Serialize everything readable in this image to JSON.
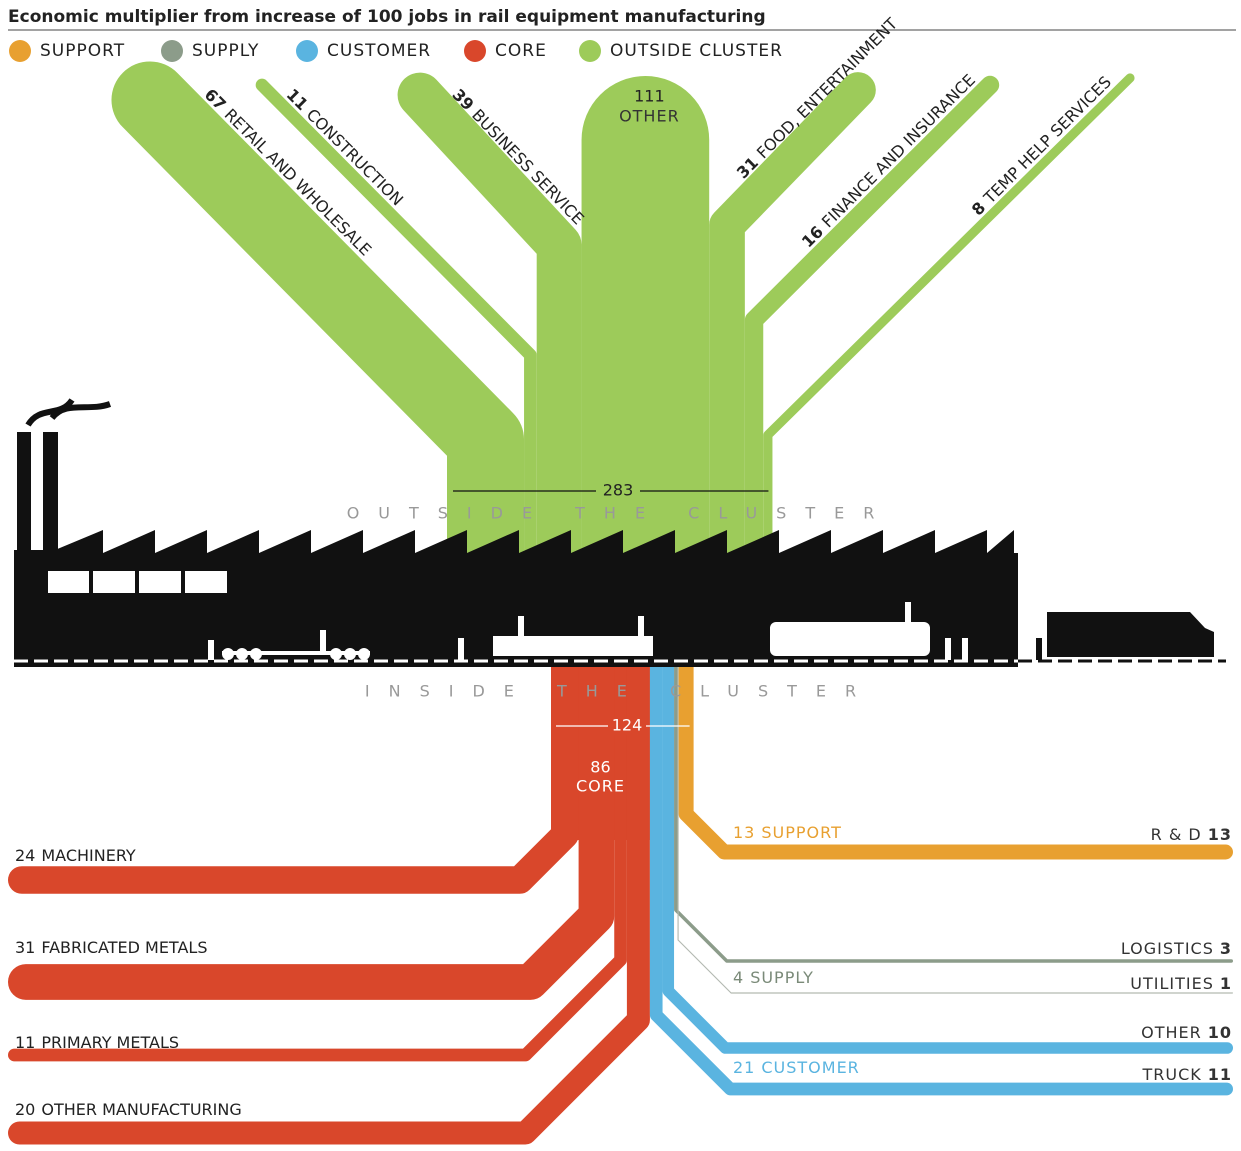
{
  "title": "Economic multiplier from increase of 100 jobs in rail equipment manufacturing",
  "legend": [
    {
      "label": "SUPPORT",
      "color": "#e8a030"
    },
    {
      "label": "SUPPLY",
      "color": "#8c9c8a"
    },
    {
      "label": "CUSTOMER",
      "color": "#5ab4e0"
    },
    {
      "label": "CORE",
      "color": "#d9472b"
    },
    {
      "label": "OUTSIDE CLUSTER",
      "color": "#9dcb5a"
    }
  ],
  "outside": {
    "label": "OUTSIDE THE CLUSTER",
    "total": 283,
    "branches": [
      {
        "value": 67,
        "label": "RETAIL AND WHOLESALE"
      },
      {
        "value": 11,
        "label": "CONSTRUCTION"
      },
      {
        "value": 39,
        "label": "BUSINESS SERVICE"
      },
      {
        "value": 111,
        "label": "OTHER"
      },
      {
        "value": 31,
        "label": "FOOD, ENTERTAINMENT"
      },
      {
        "value": 16,
        "label": "FINANCE AND INSURANCE"
      },
      {
        "value": 8,
        "label": "TEMP HELP SERVICES"
      }
    ]
  },
  "inside": {
    "label": "INSIDE THE CLUSTER",
    "total": 124,
    "core": {
      "value": 86,
      "label": "CORE",
      "branches": [
        {
          "value": 24,
          "label": "MACHINERY"
        },
        {
          "value": 31,
          "label": "FABRICATED METALS"
        },
        {
          "value": 11,
          "label": "PRIMARY METALS"
        },
        {
          "value": 20,
          "label": "OTHER MANUFACTURING"
        }
      ]
    },
    "customer": {
      "value": 21,
      "label": "CUSTOMER",
      "branches": [
        {
          "label": "OTHER",
          "value": 10
        },
        {
          "label": "TRUCK",
          "value": 11
        }
      ]
    },
    "supply": {
      "value": 4,
      "label": "SUPPLY",
      "branches": [
        {
          "label": "LOGISTICS",
          "value": 3
        },
        {
          "label": "UTILITIES",
          "value": 1
        }
      ]
    },
    "support": {
      "value": 13,
      "label": "SUPPORT",
      "branches": [
        {
          "label": "R & D",
          "value": 13
        }
      ]
    }
  }
}
